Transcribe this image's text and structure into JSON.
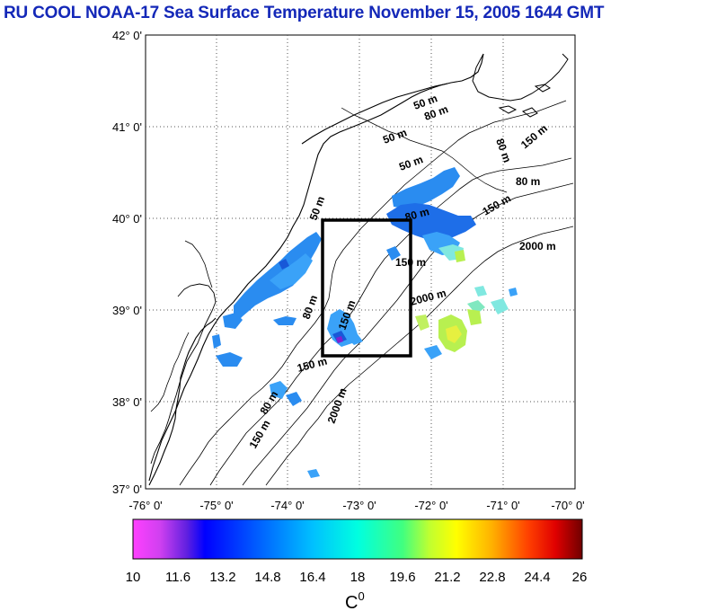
{
  "title": "RU COOL  NOAA-17 Sea Surface Temperature November 15, 2005 1644 GMT",
  "map": {
    "lat_labels": [
      "42° 0'",
      "41° 0'",
      "40° 0'",
      "39° 0'",
      "38° 0'",
      "37° 0'"
    ],
    "lon_labels": [
      "-76° 0'",
      "-75° 0'",
      "-74° 0'",
      "-73° 0'",
      "-72° 0'",
      "-71° 0'",
      "-70° 0'"
    ],
    "contour_labels": {
      "c50_a": "50 m",
      "c80_a": "80 m",
      "c50_b": "50 m",
      "c80_b": "80 m",
      "c150_a": "150 m",
      "c2000_a": "2000 m",
      "c80_c": "80 m",
      "c150_b": "150 m",
      "c80_d": "80 m",
      "c2000_b": "2000 m",
      "c50_c": "50 m",
      "c150_c": "150 m",
      "c80_e": "80 m",
      "c2000_c": "2000 m",
      "c150_d": "150 m",
      "c80_f": "80 m",
      "c50_d": "50 m",
      "c150_e": "150 m"
    },
    "study_box": {
      "lon_min": -73.5,
      "lon_max": -72.5,
      "lat_min": 38.5,
      "lat_max": 40.0
    },
    "grid": "dotted"
  },
  "colorbar": {
    "tick_labels": [
      "10",
      "11.6",
      "13.2",
      "14.8",
      "16.4",
      "18",
      "19.6",
      "21.2",
      "22.8",
      "24.4",
      "26"
    ],
    "unit": "C",
    "unit_sup": "0",
    "colors": [
      "#ff40ff",
      "#c030e0",
      "#0000ff",
      "#0060ff",
      "#00c0ff",
      "#00ffe0",
      "#40ff80",
      "#c0ff30",
      "#ffff00",
      "#ffb000",
      "#ff5000",
      "#ff0000",
      "#b00000",
      "#700000"
    ]
  }
}
